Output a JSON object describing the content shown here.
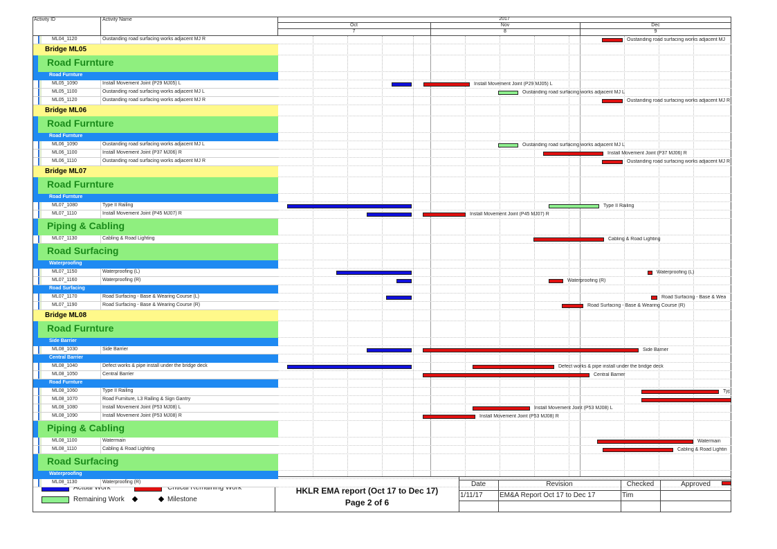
{
  "columns": {
    "activity_id": "Activity ID",
    "activity_name": "Activity Name"
  },
  "timeline": {
    "year": "2017",
    "months": [
      "Oct",
      "Nov",
      "Dec"
    ],
    "weeks": [
      "7",
      "8",
      "9"
    ]
  },
  "colors": {
    "actual": "#1010dd",
    "critical": "#e01010",
    "remaining": "#8ef08e",
    "band": "#8fef7f",
    "bridge": "#fff98a",
    "section": "#1f8af2"
  },
  "rows": [
    {
      "type": "activity",
      "id": "ML04_1120",
      "name": "Oustanding road surfacing works adjacent MJ R",
      "bars": [
        {
          "kind": "critical",
          "label": "Oustanding road surfacing works adjacent MJ"
        }
      ]
    },
    {
      "type": "bridge",
      "name": "Bridge ML05"
    },
    {
      "type": "band",
      "name": "Road Furnture"
    },
    {
      "type": "section",
      "name": "Road Furnture"
    },
    {
      "type": "activity",
      "id": "ML05_1090",
      "name": "Install Movement Joint (P29 MJ05) L",
      "bars": [
        {
          "kind": "actual"
        },
        {
          "kind": "critical",
          "label": "Install Movement Joint (P29 MJ05) L"
        }
      ]
    },
    {
      "type": "activity",
      "id": "ML05_1100",
      "name": "Oustanding road surfacing works adjacent MJ L",
      "bars": [
        {
          "kind": "remaining",
          "label": "Oustanding road surfacing works adjacent MJ L"
        }
      ]
    },
    {
      "type": "activity",
      "id": "ML05_1120",
      "name": "Oustanding road surfacing works adjacent MJ R",
      "bars": [
        {
          "kind": "critical",
          "label": "Oustanding road surfacing works adjacent MJ R"
        }
      ]
    },
    {
      "type": "bridge",
      "name": "Bridge ML06"
    },
    {
      "type": "band",
      "name": "Road Furnture"
    },
    {
      "type": "section",
      "name": "Road Furnture"
    },
    {
      "type": "activity",
      "id": "ML06_1090",
      "name": "Oustanding road surfacing works adjacent MJ L",
      "bars": [
        {
          "kind": "remaining",
          "label": "Oustanding road surfacing works adjacent MJ L"
        }
      ]
    },
    {
      "type": "activity",
      "id": "ML06_1100",
      "name": "Install Movement Joint (P37 MJ06) R",
      "bars": [
        {
          "kind": "critical",
          "label": "Install Movement Joint (P37 MJ06) R"
        }
      ]
    },
    {
      "type": "activity",
      "id": "ML06_1110",
      "name": "Oustanding road surfacing works adjacent MJ R",
      "bars": [
        {
          "kind": "critical",
          "label": "Oustanding road surfacing works adjacent MJ R"
        }
      ]
    },
    {
      "type": "bridge",
      "name": "Bridge ML07"
    },
    {
      "type": "band",
      "name": "Road Furnture"
    },
    {
      "type": "section",
      "name": "Road Furnture"
    },
    {
      "type": "activity",
      "id": "ML07_1080",
      "name": "Type II Railing",
      "bars": [
        {
          "kind": "actual"
        },
        {
          "kind": "remaining",
          "label": "Type II Railing"
        }
      ]
    },
    {
      "type": "activity",
      "id": "ML07_1110",
      "name": "Install Movement Joint (P45 MJ07) R",
      "bars": [
        {
          "kind": "actual"
        },
        {
          "kind": "critical",
          "label": "Install Movement Joint (P45 MJ07) R"
        }
      ]
    },
    {
      "type": "band",
      "name": "Piping & Cabling"
    },
    {
      "type": "activity",
      "id": "ML07_1130",
      "name": "Cabling & Road Lighting",
      "bars": [
        {
          "kind": "critical",
          "label": "Cabling & Road Lighting"
        }
      ]
    },
    {
      "type": "band",
      "name": "Road Surfacing"
    },
    {
      "type": "section",
      "name": "Waterproofing"
    },
    {
      "type": "activity",
      "id": "ML07_1150",
      "name": "Waterproofing (L)",
      "bars": [
        {
          "kind": "actual"
        },
        {
          "kind": "critical",
          "label": "Waterproofing (L)"
        }
      ]
    },
    {
      "type": "activity",
      "id": "ML07_1160",
      "name": "Waterproofing (R)",
      "bars": [
        {
          "kind": "actual"
        },
        {
          "kind": "critical",
          "label": "Waterproofing (R)"
        }
      ]
    },
    {
      "type": "section",
      "name": "Road Surfacing"
    },
    {
      "type": "activity",
      "id": "ML07_1170",
      "name": "Road Surfacing - Base & Wearing Course (L)",
      "bars": [
        {
          "kind": "actual"
        },
        {
          "kind": "critical",
          "label": "Road Surfacing - Base & Wea"
        }
      ]
    },
    {
      "type": "activity",
      "id": "ML07_1190",
      "name": "Road Surfacing - Base & Wearing Course (R)",
      "bars": [
        {
          "kind": "critical",
          "label": "Road Surfacing - Base & Wearing Course (R)"
        }
      ]
    },
    {
      "type": "bridge",
      "name": "Bridge ML08"
    },
    {
      "type": "band",
      "name": "Road Furnture"
    },
    {
      "type": "section",
      "name": "Side Barrier"
    },
    {
      "type": "activity",
      "id": "ML08_1030",
      "name": "Side Barrier",
      "bars": [
        {
          "kind": "actual"
        },
        {
          "kind": "critical",
          "label": "Side Barrier"
        }
      ]
    },
    {
      "type": "section",
      "name": "Central Barrier"
    },
    {
      "type": "activity",
      "id": "ML08_1040",
      "name": "Defect works & pipe install under the bridge deck",
      "bars": [
        {
          "kind": "actual"
        },
        {
          "kind": "critical",
          "label": "Defect works & pipe install under the bridge deck"
        }
      ]
    },
    {
      "type": "activity",
      "id": "ML08_1050",
      "name": "Central Barrier",
      "bars": [
        {
          "kind": "critical",
          "label": "Central Barrier"
        }
      ]
    },
    {
      "type": "section",
      "name": "Road Furnture"
    },
    {
      "type": "activity",
      "id": "ML08_1060",
      "name": "Type II Railing",
      "bars": [
        {
          "kind": "critical",
          "label": "Typ"
        }
      ]
    },
    {
      "type": "activity",
      "id": "ML08_1070",
      "name": "Road Furniture, L3 Railing & Sign Gantry",
      "bars": [
        {
          "kind": "critical"
        }
      ]
    },
    {
      "type": "activity",
      "id": "ML08_1080",
      "name": "Install Movement Joint (P53 MJ08) L",
      "bars": [
        {
          "kind": "critical",
          "label": "Install Movement Joint (P53 MJ08) L"
        }
      ]
    },
    {
      "type": "activity",
      "id": "ML08_1090",
      "name": "Install Movement Joint (P53 MJ08) R",
      "bars": [
        {
          "kind": "critical",
          "label": "Install Movement Joint (P53 MJ08) R"
        }
      ]
    },
    {
      "type": "band",
      "name": "Piping & Cabling"
    },
    {
      "type": "activity",
      "id": "ML08_1100",
      "name": "Watermain",
      "bars": [
        {
          "kind": "critical",
          "label": "Watermain"
        }
      ]
    },
    {
      "type": "activity",
      "id": "ML08_1110",
      "name": "Cabling & Road Lighting",
      "bars": [
        {
          "kind": "critical",
          "label": "Cabling & Road Lightin"
        }
      ]
    },
    {
      "type": "band",
      "name": "Road Surfacing"
    },
    {
      "type": "section",
      "name": "Waterproofing"
    },
    {
      "type": "activity",
      "id": "ML08_1130",
      "name": "Waterproofing (R)",
      "bars": [
        {
          "kind": "critical"
        }
      ]
    }
  ],
  "legend": {
    "actual": "Actual Work",
    "critical": "Critical Remaining Work",
    "remaining": "Remaining Work",
    "milestone": "Milestone"
  },
  "titleblock": {
    "title": "HKLR EMA report (Oct 17 to Dec 17)",
    "page": "Page 2 of 6",
    "headers": [
      "Date",
      "Revision",
      "Checked",
      "Approved"
    ],
    "row": [
      "1/11/17",
      "EM&A Report Oct 17 to Dec 17",
      "Tim",
      ""
    ]
  }
}
